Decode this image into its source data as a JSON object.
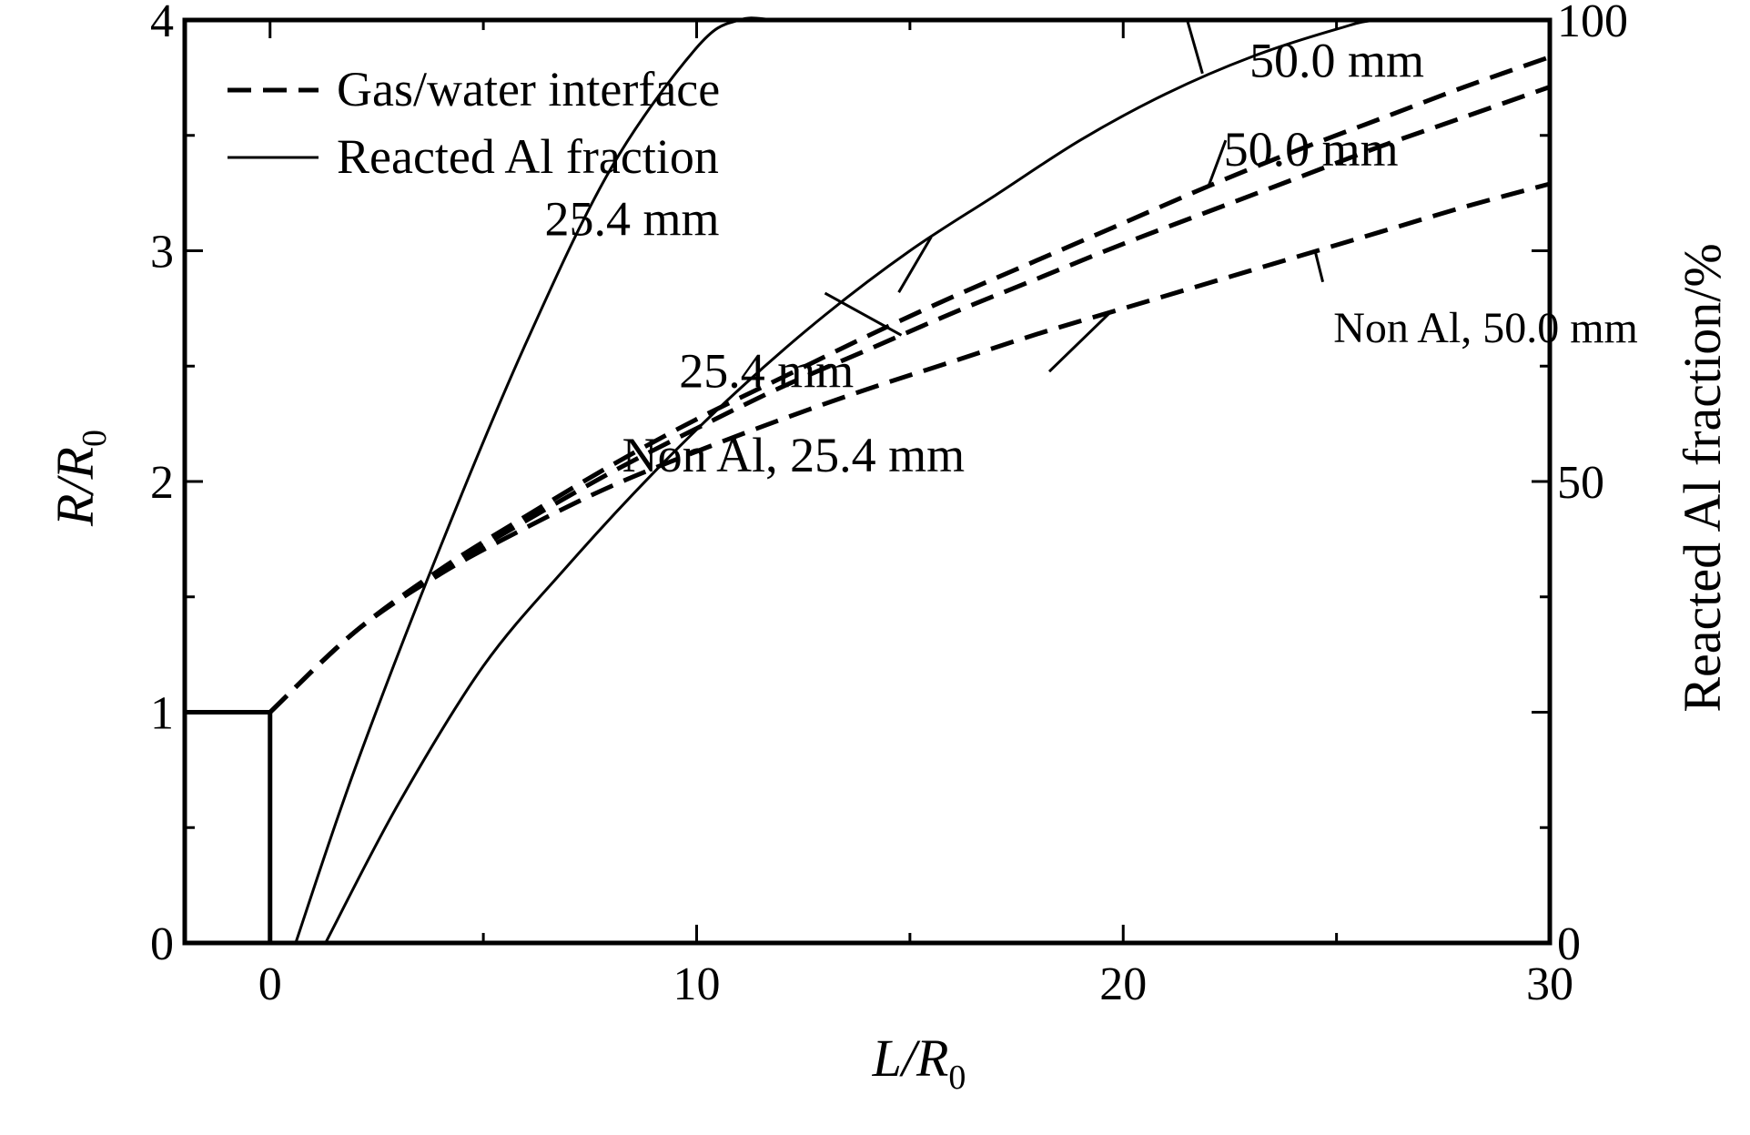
{
  "chart_data": {
    "type": "line",
    "x_axis": {
      "label_main": "L/R",
      "label_sub": "0",
      "range": [
        -2,
        30
      ],
      "ticks": [
        0,
        10,
        20,
        30
      ]
    },
    "y_axis_left": {
      "label_main": "R/R",
      "label_sub": "0",
      "range": [
        0,
        4
      ],
      "ticks": [
        0,
        1,
        2,
        3,
        4
      ]
    },
    "y_axis_right": {
      "label": "Reacted Al fraction/%",
      "range": [
        0,
        100
      ],
      "ticks": [
        0,
        50,
        100
      ]
    },
    "legend": {
      "placement": "top-left",
      "entries": [
        {
          "label": "Gas/water interface",
          "style": "dashed"
        },
        {
          "label": "Reacted Al fraction",
          "style": "solid"
        }
      ]
    },
    "grid": false,
    "series": [
      {
        "group": "gas-water-interface",
        "axis": "left",
        "style": "dashed",
        "x": [
          0,
          2,
          4,
          6,
          8,
          10,
          12,
          14,
          16,
          18,
          20,
          22,
          24,
          26,
          28,
          30
        ],
        "y": [
          1.0,
          1.35,
          1.62,
          1.85,
          2.07,
          2.27,
          2.45,
          2.63,
          2.8,
          2.96,
          3.12,
          3.28,
          3.43,
          3.57,
          3.71,
          3.84
        ]
      },
      {
        "group": "gas-water-interface",
        "axis": "left",
        "style": "dashed",
        "x": [
          0,
          2,
          4,
          6,
          8,
          10,
          12,
          14,
          16,
          18,
          20,
          22,
          24,
          26,
          28,
          30
        ],
        "y": [
          1.0,
          1.35,
          1.61,
          1.83,
          2.04,
          2.23,
          2.41,
          2.57,
          2.73,
          2.88,
          3.03,
          3.17,
          3.31,
          3.45,
          3.58,
          3.71
        ]
      },
      {
        "group": "gas-water-interface",
        "axis": "left",
        "style": "dashed",
        "x": [
          0,
          2,
          4,
          6,
          8,
          10,
          12,
          14,
          16,
          18,
          20,
          22,
          24,
          26,
          28,
          30
        ],
        "y": [
          1.0,
          1.35,
          1.6,
          1.8,
          1.98,
          2.13,
          2.27,
          2.4,
          2.52,
          2.64,
          2.75,
          2.86,
          2.97,
          3.08,
          3.19,
          3.29
        ]
      },
      {
        "group": "reacted-al-fraction",
        "axis": "right",
        "style": "solid",
        "x": [
          0.6,
          2,
          4,
          6,
          8,
          10,
          11,
          12,
          14,
          16,
          18,
          20,
          22,
          24,
          26,
          28,
          30
        ],
        "y": [
          0,
          19,
          43,
          65,
          84,
          97,
          100,
          100,
          100,
          100,
          100,
          100,
          100,
          100,
          100,
          100,
          100
        ]
      },
      {
        "group": "reacted-al-fraction",
        "axis": "right",
        "style": "solid",
        "x": [
          1.3,
          3,
          5,
          7,
          9,
          11,
          13,
          15,
          17,
          19,
          21,
          23,
          25,
          26,
          28,
          30
        ],
        "y": [
          0,
          15,
          30,
          41,
          51,
          60,
          68,
          75,
          81,
          87,
          92,
          96,
          99,
          100,
          100,
          100
        ]
      }
    ],
    "step_line": {
      "axis": "left",
      "x": [
        -2,
        0,
        0
      ],
      "y": [
        1,
        1,
        0
      ]
    },
    "annotations": [
      {
        "text": "50.0 mm",
        "series_index": 0,
        "at_x": 22.0,
        "dx": 45,
        "dy": -120
      },
      {
        "text": "25.4 mm",
        "series_index": 1,
        "at_x": 14.8,
        "dx": -200,
        "dy": -110
      },
      {
        "text": "Non Al, 50.0 mm",
        "series_index": 2,
        "at_x": 24.5,
        "dx": 20,
        "dy": 80,
        "small": true
      },
      {
        "text": "Non Al, 25.4 mm",
        "series_index": 2,
        "at_x": 19.7,
        "dx": -160,
        "dy": 155
      },
      {
        "text": "50.0 mm",
        "series_index": 3,
        "at_x": 21.5,
        "dx": 40,
        "dy": 140
      },
      {
        "text": "25.4 mm",
        "series_index": 4,
        "at_x": 15.5,
        "dx": -85,
        "dy": 145
      }
    ]
  }
}
